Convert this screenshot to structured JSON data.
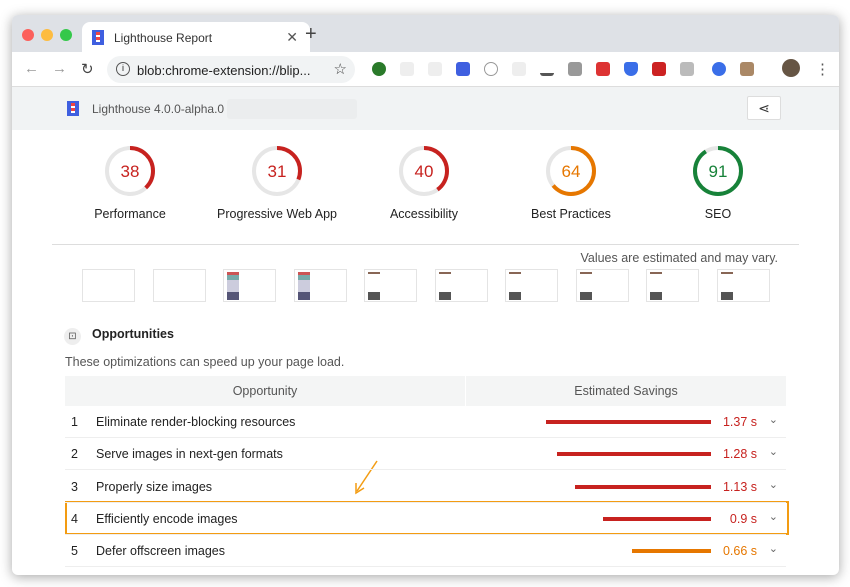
{
  "browser": {
    "tab_title": "Lighthouse Report",
    "url": "blob:chrome-extension://blip..."
  },
  "report": {
    "version": "Lighthouse 4.0.0-alpha.0",
    "gauges": [
      {
        "label": "Performance",
        "score": 38,
        "color": "#c7221f"
      },
      {
        "label": "Progressive Web App",
        "score": 31,
        "color": "#c7221f"
      },
      {
        "label": "Accessibility",
        "score": 40,
        "color": "#c7221f"
      },
      {
        "label": "Best Practices",
        "score": 64,
        "color": "#e67700"
      },
      {
        "label": "SEO",
        "score": 91,
        "color": "#178239"
      }
    ],
    "estimate_note": "Values are estimated and may vary.",
    "opportunities": {
      "title": "Opportunities",
      "description": "These optimizations can speed up your page load.",
      "col_opportunity": "Opportunity",
      "col_savings": "Estimated Savings",
      "rows": [
        {
          "n": "1",
          "title": "Eliminate render-blocking resources",
          "savings": "1.37 s",
          "seconds": 1.37,
          "color": "#c7221f"
        },
        {
          "n": "2",
          "title": "Serve images in next-gen formats",
          "savings": "1.28 s",
          "seconds": 1.28,
          "color": "#c7221f"
        },
        {
          "n": "3",
          "title": "Properly size images",
          "savings": "1.13 s",
          "seconds": 1.13,
          "color": "#c7221f"
        },
        {
          "n": "4",
          "title": "Efficiently encode images",
          "savings": "0.9 s",
          "seconds": 0.9,
          "color": "#c7221f",
          "highlighted": true
        },
        {
          "n": "5",
          "title": "Defer offscreen images",
          "savings": "0.66 s",
          "seconds": 0.66,
          "color": "#e67700"
        }
      ]
    }
  },
  "highlight_color": "#f39c12"
}
